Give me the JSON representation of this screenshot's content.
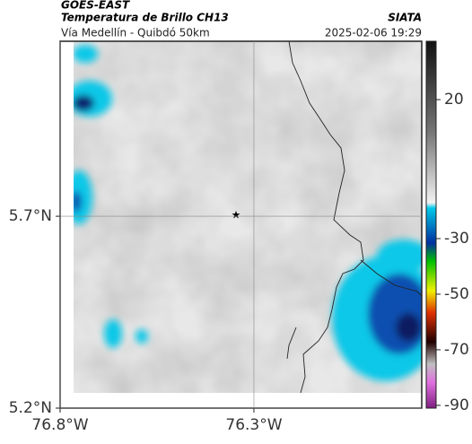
{
  "header": {
    "title": "GOES-EAST",
    "subtitle": "Temperatura de Brillo CH13",
    "source": "SIATA",
    "route": "Vía Medellín - Quibdó 50km",
    "datetime": "2025-02-06 19:29"
  },
  "map": {
    "xlim": [
      -76.8,
      -75.867
    ],
    "ylim": [
      5.2,
      6.156
    ],
    "xticks": [
      {
        "value": -76.8,
        "label": "76.8°W"
      },
      {
        "value": -76.3,
        "label": "76.3°W"
      }
    ],
    "yticks": [
      {
        "value": 5.7,
        "label": "5.7°N"
      },
      {
        "value": 5.2,
        "label": "5.2°N"
      }
    ],
    "grid": true
  },
  "colorbar": {
    "clim": [
      -91,
      41
    ],
    "ticks": [
      20,
      -30,
      -50,
      -70,
      -90
    ]
  }
}
